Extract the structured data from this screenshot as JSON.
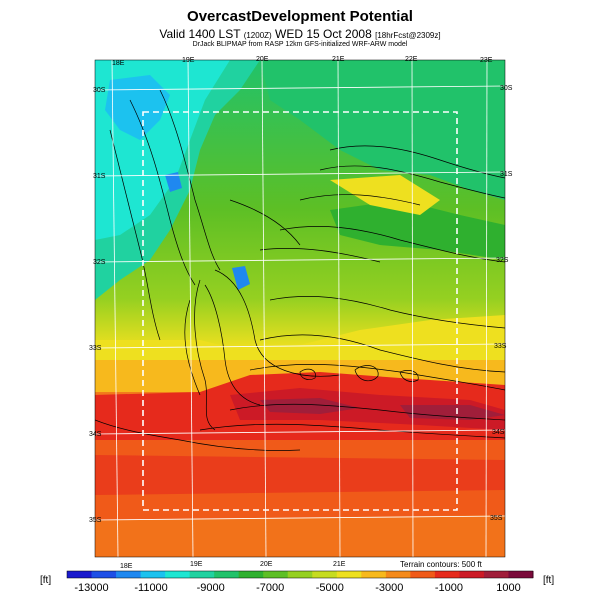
{
  "header": {
    "title": "OvercastDevelopment Potential",
    "valid_prefix": "Valid 1400 LST",
    "valid_utc": "(1200Z)",
    "valid_date": "WED 15 Oct 2008",
    "forecast_tag": "[18hrFcst@2309z]",
    "credit": "DrJack BLIPMAP from RASP 12km GFS-initialized WRF-ARW model"
  },
  "map": {
    "lon_labels_top": [
      "18E",
      "19E",
      "20E",
      "21E",
      "22E",
      "23E"
    ],
    "lon_labels_bottom": [
      "18E",
      "19E",
      "20E",
      "21E"
    ],
    "lat_labels_left": [
      "30S",
      "31S",
      "32S",
      "33S",
      "34S",
      "35S"
    ],
    "lat_labels_right": [
      "30S",
      "31S",
      "32S",
      "33S",
      "34S",
      "35S"
    ],
    "terrain_note": "Terrain contours: 500 ft"
  },
  "colorbar": {
    "unit_left": "[ft]",
    "unit_right": "[ft]",
    "tick_labels": [
      "-13000",
      "-11000",
      "-9000",
      "-7000",
      "-5000",
      "-3000",
      "-1000",
      "1000"
    ],
    "colors": [
      "#1a1acd",
      "#1e4fe6",
      "#1f88f0",
      "#1cc2ef",
      "#1ee6d2",
      "#20d2a0",
      "#21c26a",
      "#2fb02f",
      "#5dbf25",
      "#95d021",
      "#c6dc1f",
      "#eee01f",
      "#f7b91d",
      "#f48a1b",
      "#f05a19",
      "#e62a1c",
      "#cc1a26",
      "#a01e3a",
      "#7a0a3a"
    ]
  }
}
